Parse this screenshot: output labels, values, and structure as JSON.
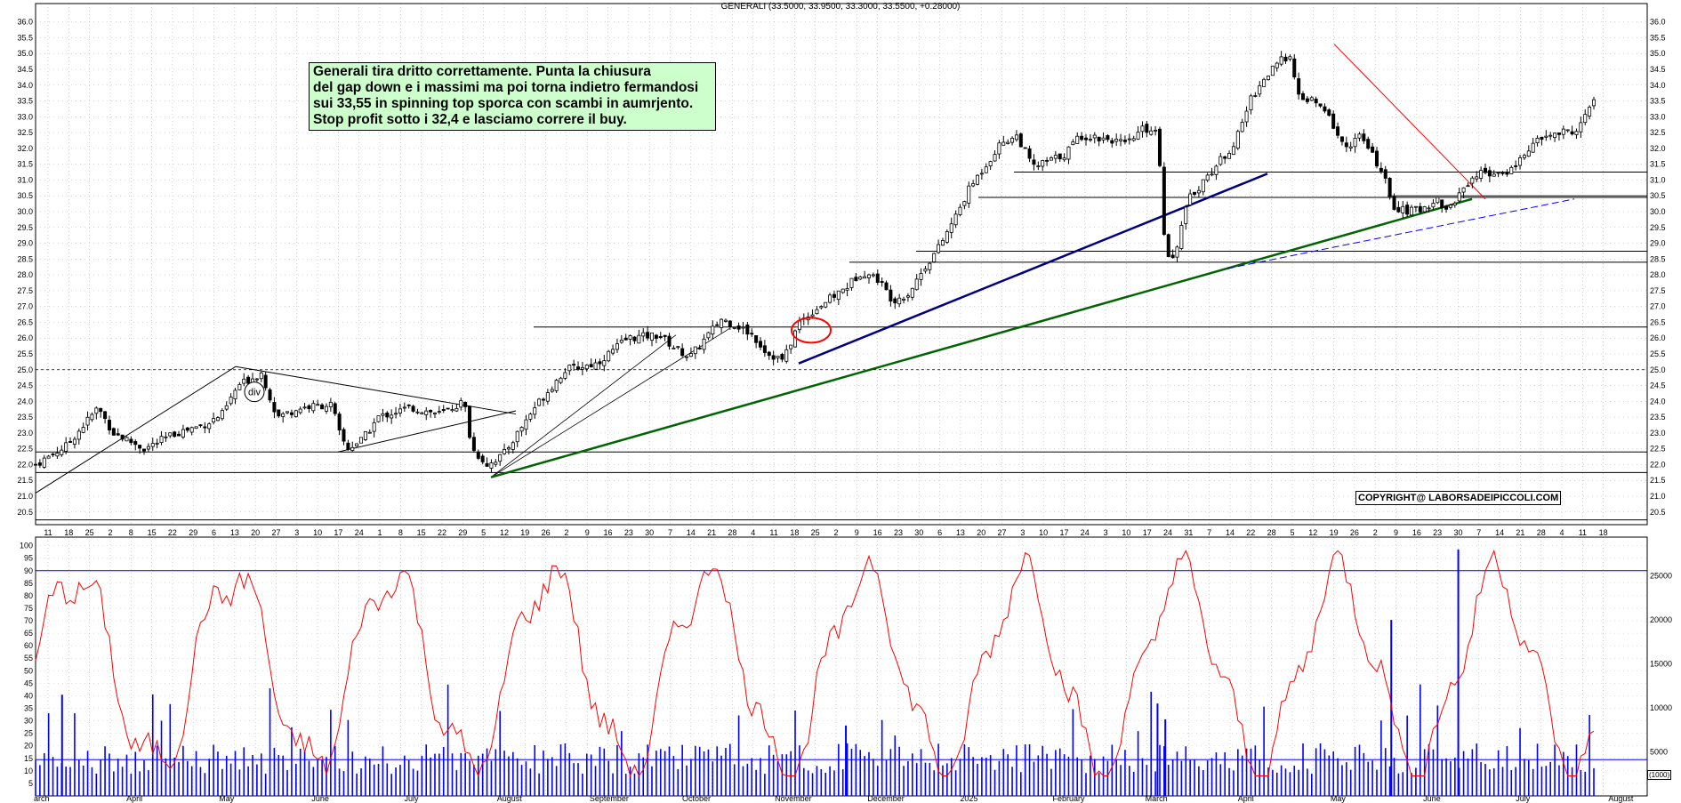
{
  "window": {
    "title": "GENERALI (33.5000, 33.9500, 33.3000, 33.5500, +0.28000)"
  },
  "annotation": {
    "lines": [
      "Generali tira dritto correttamente. Punta la chiusura",
      "del gap down e i massimi ma poi torna indietro fermandosi",
      "sui 33,55 in spinning top sporca con scambi in aumrjento.",
      "Stop profit sotto i 32,4 e lasciamo correre il buy."
    ]
  },
  "copyright": "COPYRIGHT@ LABORSADEIPICCOLI.COM",
  "div_label": "div",
  "volume_unit": "(1000)",
  "colors": {
    "candle": "#000000",
    "oscillator": "#ff0000",
    "volume": "#0000ff",
    "trend_blue": "#000080",
    "trend_green": "#006400",
    "grid": "#b0b0b0"
  },
  "chart_data": {
    "type": "candlestick",
    "title": "GENERALI (33.5000, 33.9500, 33.3000, 33.5500, +0.28000)",
    "last": {
      "open": 33.5,
      "high": 33.95,
      "low": 33.3,
      "close": 33.55,
      "change": 0.28
    },
    "price_axis": {
      "ylim": [
        20.1,
        36.3
      ],
      "ticks": [
        "20.5",
        "21.0",
        "21.5",
        "22.0",
        "22.5",
        "23.0",
        "23.5",
        "24.0",
        "24.5",
        "25.0",
        "25.5",
        "26.0",
        "26.5",
        "27.0",
        "27.5",
        "28.0",
        "28.5",
        "29.0",
        "29.5",
        "30.0",
        "30.5",
        "31.0",
        "31.5",
        "32.0",
        "32.5",
        "33.0",
        "33.5",
        "34.0",
        "34.5",
        "35.0",
        "35.5",
        "36.0"
      ]
    },
    "oscillator_axis": {
      "ylim": [
        0,
        102
      ],
      "ticks": [
        "5",
        "10",
        "15",
        "20",
        "25",
        "30",
        "35",
        "40",
        "45",
        "50",
        "55",
        "60",
        "65",
        "70",
        "75",
        "80",
        "85",
        "90",
        "95",
        "100"
      ]
    },
    "volume_axis": {
      "ylim": [
        0,
        29000
      ],
      "ticks": [
        "5000",
        "10000",
        "15000",
        "20000",
        "25000"
      ],
      "unit": "(1000)"
    },
    "months": [
      "arch",
      "April",
      "May",
      "June",
      "July",
      "August",
      "September",
      "October",
      "November",
      "December",
      "2025",
      "February",
      "March",
      "April",
      "May",
      "June",
      "July",
      "August"
    ],
    "day_ticks": [
      "11",
      "18",
      "25",
      "2",
      "8",
      "15",
      "22",
      "29",
      "6",
      "13",
      "20",
      "27",
      "3",
      "10",
      "17",
      "24",
      "1",
      "8",
      "15",
      "22",
      "29",
      "5",
      "12",
      "19",
      "26",
      "2",
      "9",
      "16",
      "23",
      "30",
      "7",
      "14",
      "21",
      "28",
      "4",
      "11",
      "18",
      "25",
      "2",
      "9",
      "16",
      "23",
      "30",
      "6",
      "13",
      "20",
      "27",
      "3",
      "10",
      "17",
      "24",
      "3",
      "10",
      "17",
      "24",
      "31",
      "7",
      "14",
      "22",
      "28",
      "5",
      "12",
      "19",
      "26",
      "2",
      "9",
      "16",
      "23",
      "30",
      "7",
      "14",
      "21",
      "28",
      "4",
      "11",
      "18"
    ],
    "close_path": [
      [
        0,
        22.0
      ],
      [
        0.02,
        22.6
      ],
      [
        0.04,
        23.8
      ],
      [
        0.05,
        23.0
      ],
      [
        0.07,
        22.5
      ],
      [
        0.09,
        23.0
      ],
      [
        0.11,
        23.3
      ],
      [
        0.12,
        23.6
      ],
      [
        0.13,
        24.5
      ],
      [
        0.145,
        24.9
      ],
      [
        0.155,
        23.5
      ],
      [
        0.17,
        23.8
      ],
      [
        0.19,
        23.9
      ],
      [
        0.195,
        23.0
      ],
      [
        0.2,
        22.5
      ],
      [
        0.21,
        22.8
      ],
      [
        0.22,
        23.5
      ],
      [
        0.24,
        23.8
      ],
      [
        0.26,
        23.6
      ],
      [
        0.275,
        24.0
      ],
      [
        0.28,
        22.5
      ],
      [
        0.29,
        22.0
      ],
      [
        0.3,
        22.3
      ],
      [
        0.32,
        23.8
      ],
      [
        0.34,
        25.0
      ],
      [
        0.36,
        25.2
      ],
      [
        0.38,
        26.0
      ],
      [
        0.4,
        26.1
      ],
      [
        0.41,
        25.7
      ],
      [
        0.42,
        25.4
      ],
      [
        0.43,
        26.0
      ],
      [
        0.44,
        26.6
      ],
      [
        0.45,
        26.4
      ],
      [
        0.46,
        26.1
      ],
      [
        0.47,
        25.5
      ],
      [
        0.48,
        25.3
      ],
      [
        0.49,
        26.5
      ],
      [
        0.5,
        26.9
      ],
      [
        0.52,
        27.6
      ],
      [
        0.53,
        28.1
      ],
      [
        0.54,
        27.9
      ],
      [
        0.55,
        27.2
      ],
      [
        0.56,
        27.4
      ],
      [
        0.57,
        28.2
      ],
      [
        0.58,
        28.9
      ],
      [
        0.59,
        29.8
      ],
      [
        0.6,
        30.8
      ],
      [
        0.61,
        31.5
      ],
      [
        0.62,
        32.2
      ],
      [
        0.63,
        32.4
      ],
      [
        0.64,
        31.4
      ],
      [
        0.66,
        31.8
      ],
      [
        0.67,
        32.4
      ],
      [
        0.69,
        32.3
      ],
      [
        0.7,
        32.1
      ],
      [
        0.71,
        32.6
      ],
      [
        0.72,
        32.6
      ],
      [
        0.725,
        28.8
      ],
      [
        0.73,
        28.5
      ],
      [
        0.74,
        30.4
      ],
      [
        0.75,
        31.0
      ],
      [
        0.76,
        31.6
      ],
      [
        0.77,
        32.2
      ],
      [
        0.78,
        33.6
      ],
      [
        0.79,
        34.3
      ],
      [
        0.8,
        34.8
      ],
      [
        0.805,
        35.0
      ],
      [
        0.81,
        33.6
      ],
      [
        0.82,
        33.5
      ],
      [
        0.83,
        33.0
      ],
      [
        0.84,
        32.0
      ],
      [
        0.85,
        32.4
      ],
      [
        0.86,
        31.6
      ],
      [
        0.865,
        31.2
      ],
      [
        0.87,
        30.2
      ],
      [
        0.88,
        30.0
      ],
      [
        0.89,
        30.1
      ],
      [
        0.9,
        30.4
      ],
      [
        0.905,
        30.0
      ],
      [
        0.91,
        30.3
      ],
      [
        0.92,
        31.0
      ],
      [
        0.93,
        31.3
      ],
      [
        0.94,
        31.1
      ],
      [
        0.95,
        31.5
      ],
      [
        0.96,
        32.1
      ],
      [
        0.97,
        32.4
      ],
      [
        0.98,
        32.5
      ],
      [
        0.99,
        32.6
      ],
      [
        1.0,
        33.55
      ]
    ]
  }
}
